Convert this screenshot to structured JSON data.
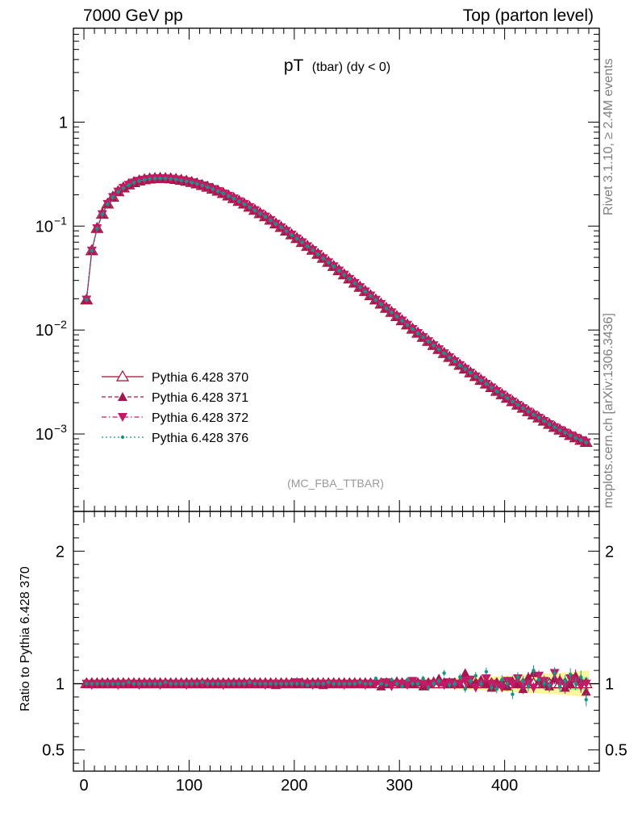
{
  "header": {
    "left": "7000 GeV pp",
    "right": "Top (parton level)"
  },
  "side_labels": {
    "rivet": "Rivet 3.1.10, ≥ 2.4M events",
    "mcplots": "mcplots.cern.ch [arXiv:1306.3436]"
  },
  "colors": {
    "p370": "#a0102e",
    "p371": "#a3164f",
    "p372": "#c21a64",
    "p376": "#179488",
    "band_yellow": "#fbf59b",
    "band_green": "#8df58f"
  },
  "chart_data": [
    {
      "type": "line",
      "title_main": "pT",
      "title_sub": "(tbar) (dy < 0)",
      "watermark": "(MC_FBA_TTBAR)",
      "xlabel": "",
      "ylabel": "",
      "yscale": "log",
      "xlim": [
        -10,
        490
      ],
      "ylim": [
        0.00018,
        8
      ],
      "y_ticks": [
        {
          "value": 0.001,
          "label": "10",
          "exp": "−3"
        },
        {
          "value": 0.01,
          "label": "10",
          "exp": "−2"
        },
        {
          "value": 0.1,
          "label": "10",
          "exp": "−1"
        },
        {
          "value": 1,
          "label": "1",
          "exp": ""
        }
      ],
      "legend_position": "lower-left",
      "legend": [
        {
          "name": "Pythia 6.428 370",
          "marker": "triangle-up-open",
          "dash": "solid",
          "color_key": "p370"
        },
        {
          "name": "Pythia 6.428 371",
          "marker": "triangle-up",
          "dash": "dashed",
          "color_key": "p371"
        },
        {
          "name": "Pythia 6.428 372",
          "marker": "triangle-down",
          "dash": "dashdot",
          "color_key": "p372"
        },
        {
          "name": "Pythia 6.428 376",
          "marker": "dot",
          "dash": "dotted",
          "color_key": "p376"
        }
      ],
      "x": [
        2.5,
        7.5,
        12.5,
        17.5,
        22.5,
        27.5,
        32.5,
        37.5,
        42.5,
        47.5,
        52.5,
        57.5,
        62.5,
        67.5,
        72.5,
        77.5,
        82.5,
        87.5,
        92.5,
        97.5,
        102.5,
        107.5,
        112.5,
        117.5,
        122.5,
        127.5,
        132.5,
        137.5,
        142.5,
        147.5,
        152.5,
        157.5,
        162.5,
        167.5,
        172.5,
        177.5,
        182.5,
        187.5,
        192.5,
        197.5,
        202.5,
        207.5,
        212.5,
        217.5,
        222.5,
        227.5,
        232.5,
        237.5,
        242.5,
        247.5,
        252.5,
        257.5,
        262.5,
        267.5,
        272.5,
        277.5,
        282.5,
        287.5,
        292.5,
        297.5,
        302.5,
        307.5,
        312.5,
        317.5,
        322.5,
        327.5,
        332.5,
        337.5,
        342.5,
        347.5,
        352.5,
        357.5,
        362.5,
        367.5,
        372.5,
        377.5,
        382.5,
        387.5,
        392.5,
        397.5,
        402.5,
        407.5,
        412.5,
        417.5,
        422.5,
        427.5,
        432.5,
        437.5,
        442.5,
        447.5,
        452.5,
        457.5,
        462.5,
        467.5,
        472.5,
        477.5
      ],
      "series": [
        {
          "name": "Pythia 6.428 370",
          "values": [
            0.0195,
            0.058,
            0.095,
            0.13,
            0.163,
            0.19,
            0.214,
            0.233,
            0.249,
            0.262,
            0.272,
            0.279,
            0.284,
            0.287,
            0.288,
            0.287,
            0.285,
            0.281,
            0.276,
            0.27,
            0.263,
            0.255,
            0.246,
            0.237,
            0.227,
            0.217,
            0.206,
            0.195,
            0.184,
            0.173,
            0.163,
            0.152,
            0.142,
            0.132,
            0.123,
            0.114,
            0.105,
            0.0972,
            0.0896,
            0.0825,
            0.0759,
            0.0697,
            0.0639,
            0.0586,
            0.0536,
            0.049,
            0.0448,
            0.0409,
            0.0373,
            0.034,
            0.031,
            0.0283,
            0.0258,
            0.0235,
            0.0214,
            0.0195,
            0.0178,
            0.0162,
            0.0148,
            0.0135,
            0.0123,
            0.0112,
            0.0102,
            0.00933,
            0.00852,
            0.00779,
            0.00712,
            0.00651,
            0.00596,
            0.00546,
            0.005,
            0.00459,
            0.00422,
            0.00388,
            0.00357,
            0.00329,
            0.00303,
            0.0028,
            0.00258,
            0.00239,
            0.00221,
            0.00205,
            0.0019,
            0.00177,
            0.00164,
            0.00153,
            0.00143,
            0.00133,
            0.00124,
            0.00116,
            0.00109,
            0.00103,
            0.00097,
            0.00092,
            0.00087,
            0.00083
          ]
        },
        {
          "name": "Pythia 6.428 371",
          "values": [
            0.0196,
            0.058,
            0.095,
            0.13,
            0.163,
            0.19,
            0.214,
            0.233,
            0.249,
            0.262,
            0.272,
            0.279,
            0.284,
            0.287,
            0.288,
            0.287,
            0.285,
            0.281,
            0.276,
            0.27,
            0.263,
            0.255,
            0.246,
            0.237,
            0.227,
            0.217,
            0.206,
            0.195,
            0.184,
            0.173,
            0.163,
            0.152,
            0.142,
            0.132,
            0.123,
            0.114,
            0.105,
            0.0972,
            0.0896,
            0.0825,
            0.0759,
            0.0697,
            0.0639,
            0.0586,
            0.0536,
            0.049,
            0.0448,
            0.0409,
            0.0373,
            0.034,
            0.031,
            0.0283,
            0.0258,
            0.0235,
            0.0214,
            0.0195,
            0.0178,
            0.0162,
            0.0148,
            0.0135,
            0.0123,
            0.0112,
            0.0102,
            0.00933,
            0.00852,
            0.00779,
            0.00712,
            0.00651,
            0.00596,
            0.00546,
            0.005,
            0.00459,
            0.00422,
            0.00388,
            0.00357,
            0.00329,
            0.00303,
            0.0028,
            0.00258,
            0.00239,
            0.00221,
            0.00205,
            0.0019,
            0.00177,
            0.00164,
            0.00153,
            0.00143,
            0.00133,
            0.00124,
            0.00116,
            0.00109,
            0.00103,
            0.00097,
            0.00092,
            0.00087,
            0.00083
          ]
        },
        {
          "name": "Pythia 6.428 372",
          "values": [
            0.0196,
            0.058,
            0.095,
            0.13,
            0.163,
            0.19,
            0.214,
            0.233,
            0.249,
            0.262,
            0.272,
            0.279,
            0.284,
            0.287,
            0.288,
            0.287,
            0.285,
            0.281,
            0.276,
            0.27,
            0.263,
            0.255,
            0.246,
            0.237,
            0.227,
            0.217,
            0.206,
            0.195,
            0.184,
            0.173,
            0.163,
            0.152,
            0.142,
            0.132,
            0.123,
            0.114,
            0.105,
            0.0972,
            0.0896,
            0.0825,
            0.0759,
            0.0697,
            0.0639,
            0.0586,
            0.0536,
            0.049,
            0.0448,
            0.0409,
            0.0373,
            0.034,
            0.031,
            0.0283,
            0.0258,
            0.0235,
            0.0214,
            0.0195,
            0.0178,
            0.0162,
            0.0148,
            0.0135,
            0.0123,
            0.0112,
            0.0102,
            0.00933,
            0.00852,
            0.00779,
            0.00712,
            0.00651,
            0.00596,
            0.00546,
            0.005,
            0.00459,
            0.00422,
            0.00388,
            0.00357,
            0.00329,
            0.00303,
            0.0028,
            0.00258,
            0.00239,
            0.00221,
            0.00205,
            0.0019,
            0.00177,
            0.00164,
            0.00153,
            0.00143,
            0.00133,
            0.00124,
            0.00116,
            0.00109,
            0.00103,
            0.00097,
            0.00092,
            0.00087,
            0.00083
          ]
        },
        {
          "name": "Pythia 6.428 376",
          "values": [
            0.0196,
            0.058,
            0.095,
            0.13,
            0.163,
            0.19,
            0.214,
            0.233,
            0.249,
            0.262,
            0.272,
            0.279,
            0.284,
            0.287,
            0.288,
            0.287,
            0.285,
            0.281,
            0.276,
            0.27,
            0.263,
            0.255,
            0.246,
            0.237,
            0.227,
            0.217,
            0.206,
            0.195,
            0.184,
            0.173,
            0.163,
            0.152,
            0.142,
            0.132,
            0.123,
            0.114,
            0.105,
            0.0972,
            0.0896,
            0.0825,
            0.0759,
            0.0697,
            0.0639,
            0.0586,
            0.0536,
            0.049,
            0.0448,
            0.0409,
            0.0373,
            0.034,
            0.031,
            0.0283,
            0.0258,
            0.0235,
            0.0214,
            0.0195,
            0.0178,
            0.0162,
            0.0148,
            0.0135,
            0.0123,
            0.0112,
            0.0102,
            0.00933,
            0.00852,
            0.00779,
            0.00712,
            0.00651,
            0.00596,
            0.00546,
            0.005,
            0.00459,
            0.00422,
            0.00388,
            0.00357,
            0.00329,
            0.00303,
            0.0028,
            0.00258,
            0.00239,
            0.00221,
            0.00205,
            0.0019,
            0.00177,
            0.00164,
            0.00153,
            0.00143,
            0.00133,
            0.00124,
            0.00116,
            0.00109,
            0.00103,
            0.00097,
            0.00092,
            0.00087,
            0.00083
          ]
        }
      ]
    },
    {
      "type": "line",
      "ylabel": "Ratio to Pythia 6.428 370",
      "xlabel": "",
      "xlim": [
        -10,
        490
      ],
      "ylim": [
        0.34,
        2.3
      ],
      "x_ticks": [
        0,
        100,
        200,
        300,
        400
      ],
      "y_ticks": [
        0.5,
        1,
        2
      ],
      "band": {
        "x": [
          0,
          100,
          200,
          250,
          300,
          350,
          400,
          450,
          480
        ],
        "yellow_halfwidth": [
          0.012,
          0.012,
          0.015,
          0.02,
          0.03,
          0.04,
          0.06,
          0.08,
          0.1
        ],
        "green_halfwidth": [
          0.005,
          0.005,
          0.007,
          0.01,
          0.014,
          0.02,
          0.03,
          0.04,
          0.05
        ]
      },
      "series": [
        {
          "name": "Pythia 6.428 371",
          "values": [
            1.0,
            1.0,
            1.0,
            1.0,
            1.01,
            1.0,
            1.0,
            1.0,
            1.0,
            1.0,
            1.0,
            1.0,
            1.01,
            1.0,
            1.0,
            1.0,
            1.01,
            1.0,
            1.0,
            1.0,
            1.0,
            1.0,
            1.0,
            1.01,
            1.0,
            1.0,
            1.0,
            1.0,
            1.0,
            1.01,
            1.0,
            1.0,
            1.0,
            1.0,
            1.0,
            1.0,
            0.99,
            1.0,
            1.0,
            1.0,
            1.0,
            1.01,
            1.0,
            1.0,
            1.0,
            0.99,
            1.0,
            1.0,
            1.0,
            1.0,
            1.0,
            1.0,
            1.0,
            1.01,
            1.0,
            1.02,
            0.98,
            1.0,
            1.01,
            1.02,
            1.0,
            1.0,
            1.0,
            1.01,
            0.98,
            1.0,
            1.02,
            1.04,
            1.01,
            1.0,
            1.0,
            1.0,
            1.08,
            1.0,
            1.01,
            1.03,
            1.0,
            0.97,
            1.0,
            1.0,
            0.98,
            1.02,
            1.0,
            0.96,
            1.05,
            1.08,
            1.02,
            1.0,
            0.98,
            1.04,
            1.03,
            0.97,
            1.0,
            1.06,
            1.02,
            0.94
          ]
        },
        {
          "name": "Pythia 6.428 372",
          "values": [
            1.0,
            0.99,
            1.0,
            1.0,
            1.0,
            1.0,
            0.99,
            1.0,
            1.0,
            1.0,
            0.99,
            1.0,
            1.0,
            1.0,
            0.99,
            1.0,
            1.0,
            1.0,
            1.0,
            0.99,
            1.0,
            1.0,
            1.0,
            1.0,
            1.0,
            1.0,
            0.99,
            1.0,
            1.0,
            1.0,
            1.0,
            1.0,
            1.0,
            1.0,
            0.99,
            1.0,
            1.0,
            1.0,
            1.0,
            1.0,
            1.01,
            1.0,
            1.0,
            0.99,
            1.0,
            1.0,
            1.0,
            1.0,
            1.0,
            0.99,
            1.0,
            1.0,
            1.0,
            0.99,
            1.0,
            1.0,
            1.0,
            1.01,
            0.98,
            1.0,
            1.0,
            0.99,
            1.02,
            1.0,
            1.0,
            0.98,
            1.0,
            1.0,
            0.99,
            1.01,
            0.99,
            1.0,
            1.02,
            1.03,
            0.97,
            1.0,
            1.04,
            1.0,
            0.98,
            0.97,
            1.02,
            1.0,
            1.04,
            0.98,
            1.0,
            0.97,
            1.06,
            1.02,
            0.98,
            1.08,
            1.0,
            0.99,
            1.04,
            1.02,
            0.98,
            1.0
          ]
        },
        {
          "name": "Pythia 6.428 376",
          "values": [
            1.0,
            1.0,
            1.0,
            1.0,
            1.0,
            1.0,
            1.0,
            1.0,
            1.01,
            1.0,
            1.0,
            1.0,
            1.0,
            1.0,
            1.0,
            1.01,
            1.0,
            1.0,
            1.0,
            1.0,
            1.0,
            1.0,
            1.01,
            1.0,
            1.0,
            1.0,
            1.0,
            1.0,
            1.0,
            1.0,
            1.0,
            1.01,
            1.0,
            1.0,
            1.0,
            1.0,
            1.0,
            1.0,
            1.0,
            1.0,
            1.0,
            1.0,
            0.99,
            1.0,
            1.0,
            1.0,
            1.01,
            1.0,
            1.0,
            1.0,
            1.0,
            1.0,
            1.01,
            1.0,
            1.0,
            1.04,
            1.0,
            0.99,
            1.03,
            1.0,
            0.98,
            1.03,
            1.0,
            1.0,
            1.04,
            0.97,
            1.0,
            1.02,
            1.08,
            0.99,
            1.0,
            1.05,
            0.96,
            1.02,
            1.06,
            1.0,
            1.09,
            0.97,
            0.96,
            1.03,
            1.0,
            0.92,
            1.05,
            1.02,
            0.98,
            1.1,
            1.03,
            1.0,
            0.99,
            1.08,
            0.98,
            1.02,
            1.07,
            1.0,
            1.05,
            0.88
          ]
        }
      ]
    }
  ]
}
